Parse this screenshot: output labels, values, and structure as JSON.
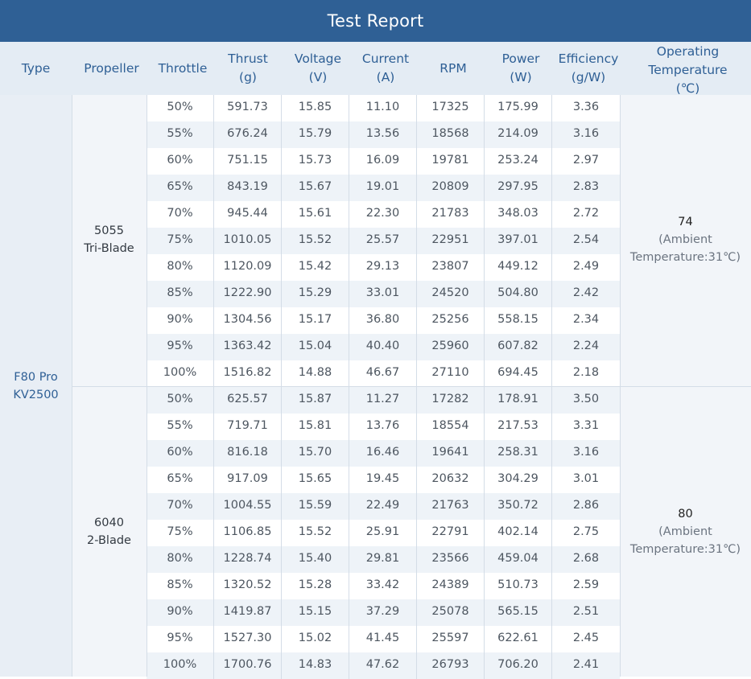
{
  "title": "Test Report",
  "headers": {
    "type": [
      "Type"
    ],
    "propeller": [
      "Propeller"
    ],
    "throttle": [
      "Throttle"
    ],
    "thrust": [
      "Thrust",
      "(g)"
    ],
    "voltage": [
      "Voltage",
      "(V)"
    ],
    "current": [
      "Current",
      "(A)"
    ],
    "rpm": [
      "RPM"
    ],
    "power": [
      "Power",
      "(W)"
    ],
    "efficiency": [
      "Efficiency",
      "(g/W)"
    ],
    "operating_temperature": [
      "Operating",
      "Temperature",
      "(℃)"
    ]
  },
  "motor_type": [
    "F80 Pro",
    "KV2500"
  ],
  "groups": [
    {
      "propeller": [
        "5055",
        "Tri-Blade"
      ],
      "operating_temperature": {
        "value": "74",
        "note": [
          "(Ambient",
          "Temperature:31℃)"
        ]
      },
      "rows": [
        [
          "50%",
          "591.73",
          "15.85",
          "11.10",
          "17325",
          "175.99",
          "3.36"
        ],
        [
          "55%",
          "676.24",
          "15.79",
          "13.56",
          "18568",
          "214.09",
          "3.16"
        ],
        [
          "60%",
          "751.15",
          "15.73",
          "16.09",
          "19781",
          "253.24",
          "2.97"
        ],
        [
          "65%",
          "843.19",
          "15.67",
          "19.01",
          "20809",
          "297.95",
          "2.83"
        ],
        [
          "70%",
          "945.44",
          "15.61",
          "22.30",
          "21783",
          "348.03",
          "2.72"
        ],
        [
          "75%",
          "1010.05",
          "15.52",
          "25.57",
          "22951",
          "397.01",
          "2.54"
        ],
        [
          "80%",
          "1120.09",
          "15.42",
          "29.13",
          "23807",
          "449.12",
          "2.49"
        ],
        [
          "85%",
          "1222.90",
          "15.29",
          "33.01",
          "24520",
          "504.80",
          "2.42"
        ],
        [
          "90%",
          "1304.56",
          "15.17",
          "36.80",
          "25256",
          "558.15",
          "2.34"
        ],
        [
          "95%",
          "1363.42",
          "15.04",
          "40.40",
          "25960",
          "607.82",
          "2.24"
        ],
        [
          "100%",
          "1516.82",
          "14.88",
          "46.67",
          "27110",
          "694.45",
          "2.18"
        ]
      ]
    },
    {
      "propeller": [
        "6040",
        "2-Blade"
      ],
      "operating_temperature": {
        "value": "80",
        "note": [
          "(Ambient",
          "Temperature:31℃)"
        ]
      },
      "rows": [
        [
          "50%",
          "625.57",
          "15.87",
          "11.27",
          "17282",
          "178.91",
          "3.50"
        ],
        [
          "55%",
          "719.71",
          "15.81",
          "13.76",
          "18554",
          "217.53",
          "3.31"
        ],
        [
          "60%",
          "816.18",
          "15.70",
          "16.46",
          "19641",
          "258.31",
          "3.16"
        ],
        [
          "65%",
          "917.09",
          "15.65",
          "19.45",
          "20632",
          "304.29",
          "3.01"
        ],
        [
          "70%",
          "1004.55",
          "15.59",
          "22.49",
          "21763",
          "350.72",
          "2.86"
        ],
        [
          "75%",
          "1106.85",
          "15.52",
          "25.91",
          "22791",
          "402.14",
          "2.75"
        ],
        [
          "80%",
          "1228.74",
          "15.40",
          "29.81",
          "23566",
          "459.04",
          "2.68"
        ],
        [
          "85%",
          "1320.52",
          "15.28",
          "33.42",
          "24389",
          "510.73",
          "2.59"
        ],
        [
          "90%",
          "1419.87",
          "15.15",
          "37.29",
          "25078",
          "565.15",
          "2.51"
        ],
        [
          "95%",
          "1527.30",
          "15.02",
          "41.45",
          "25597",
          "622.61",
          "2.45"
        ],
        [
          "100%",
          "1700.76",
          "14.83",
          "47.62",
          "26793",
          "706.20",
          "2.41"
        ]
      ]
    }
  ]
}
